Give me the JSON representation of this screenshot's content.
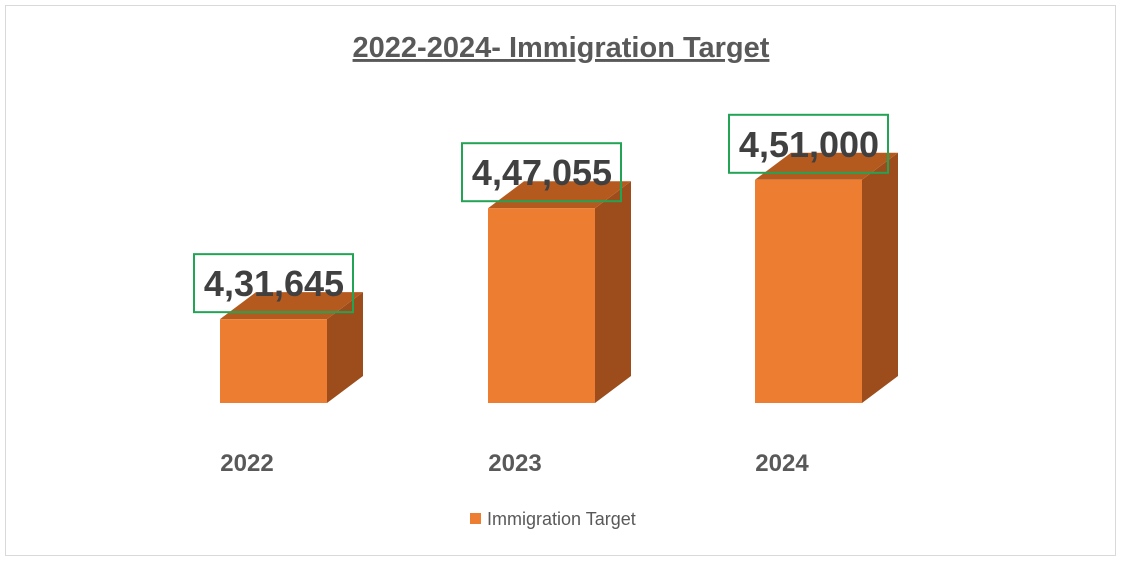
{
  "chart_data": {
    "type": "bar",
    "title": "2022-2024- Immigration Target",
    "categories": [
      "2022",
      "2023",
      "2024"
    ],
    "series": [
      {
        "name": "Immigration Target",
        "values": [
          431645,
          447055,
          451000
        ]
      }
    ],
    "data_labels": [
      "4,31,645",
      "4,47,055",
      "4,51,000"
    ],
    "ylim": [
      420000,
      460000
    ],
    "style": "3d-column",
    "grid": false,
    "legend": "bottom",
    "colors": {
      "front": "#ed7d31",
      "top": "#b55a1f",
      "side": "#9c4d1b",
      "label_box": "#23a455",
      "border": "#d9d9d9"
    }
  }
}
